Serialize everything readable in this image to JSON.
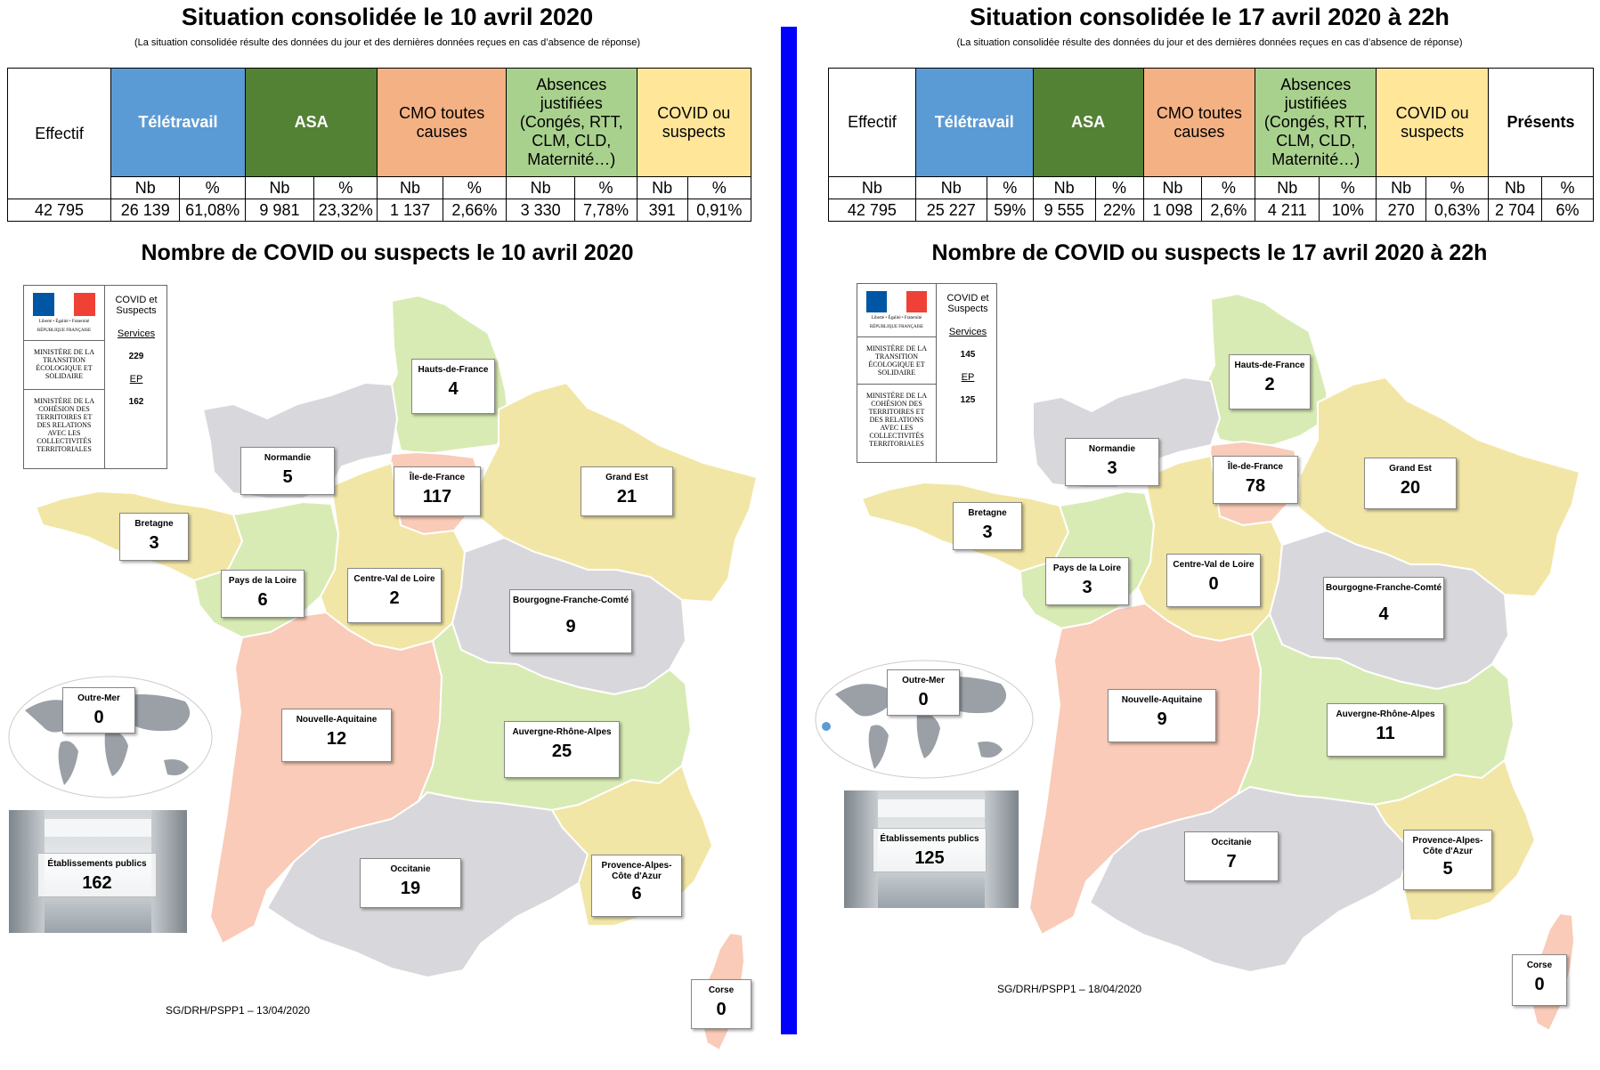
{
  "left": {
    "title": "Situation consolidée le 10 avril 2020",
    "subtitle": "(La situation consolidée résulte des données du jour et des dernières données reçues en cas d’absence de réponse)",
    "headers": {
      "effectif": "Effectif",
      "teletravail": "Télétravail",
      "asa": "ASA",
      "cmo": "CMO toutes causes",
      "absences": "Absences justifiées (Congés, RTT, CLM, CLD, Maternité…)",
      "covid": "COVID ou suspects"
    },
    "sub": {
      "nb": "Nb",
      "pct": "%"
    },
    "values": {
      "effectif": "42 795",
      "tele_nb": "26 139",
      "tele_pct": "61,08%",
      "asa_nb": "9 981",
      "asa_pct": "23,32%",
      "cmo_nb": "1 137",
      "cmo_pct": "2,66%",
      "abs_nb": "3 330",
      "abs_pct": "7,78%",
      "covid_nb": "391",
      "covid_pct": "0,91%"
    },
    "map_title": "Nombre de COVID ou suspects le 10 avril 2020",
    "legend": {
      "ministry1": "MINISTÈRE DE LA TRANSITION ÉCOLOGIQUE ET SOLIDAIRE",
      "ministry2": "MINISTÈRE DE LA COHÉSION DES TERRITOIRES ET DES RELATIONS AVEC LES COLLECTIVITÉS TERRITORIALES",
      "rf": "RÉPUBLIQUE FRANÇAISE",
      "motto": "Liberté • Égalité • Fraternité",
      "covid_label": "COVID et Suspects",
      "services_label": "Services",
      "services_value": "229",
      "ep_label": "EP",
      "ep_value": "162"
    },
    "regions": {
      "hdf": {
        "name": "Hauts-de-France",
        "value": "4"
      },
      "normandie": {
        "name": "Normandie",
        "value": "5"
      },
      "idf": {
        "name": "Île-de-France",
        "value": "117"
      },
      "grandest": {
        "name": "Grand Est",
        "value": "21"
      },
      "bretagne": {
        "name": "Bretagne",
        "value": "3"
      },
      "pdl": {
        "name": "Pays de la Loire",
        "value": "6"
      },
      "cvl": {
        "name": "Centre-Val de Loire",
        "value": "2"
      },
      "bfc": {
        "name": "Bourgogne-Franche-Comté",
        "value": "9"
      },
      "outremer": {
        "name": "Outre-Mer",
        "value": "0"
      },
      "na": {
        "name": "Nouvelle-Aquitaine",
        "value": "12"
      },
      "ara": {
        "name": "Auvergne-Rhône-Alpes",
        "value": "25"
      },
      "etab": {
        "name": "Établissements publics",
        "value": "162"
      },
      "occitanie": {
        "name": "Occitanie",
        "value": "19"
      },
      "paca": {
        "name": "Provence-Alpes-Côte d'Azur",
        "value": "6"
      },
      "corse": {
        "name": "Corse",
        "value": "0"
      }
    },
    "footer": "SG/DRH/PSPP1 – 13/04/2020"
  },
  "right": {
    "title": "Situation consolidée le 17 avril 2020 à 22h",
    "subtitle": "(La situation consolidée résulte des données du jour et des dernières données reçues en cas d’absence de réponse)",
    "headers": {
      "effectif": "Effectif",
      "teletravail": "Télétravail",
      "asa": "ASA",
      "cmo": "CMO toutes causes",
      "absences": "Absences justifiées (Congés, RTT, CLM, CLD, Maternité…)",
      "covid": "COVID ou suspects",
      "presents": "Présents"
    },
    "sub": {
      "nb": "Nb",
      "pct": "%"
    },
    "values": {
      "effectif": "42 795",
      "tele_nb": "25 227",
      "tele_pct": "59%",
      "asa_nb": "9 555",
      "asa_pct": "22%",
      "cmo_nb": "1 098",
      "cmo_pct": "2,6%",
      "abs_nb": "4 211",
      "abs_pct": "10%",
      "covid_nb": "270",
      "covid_pct": "0,63%",
      "pres_nb": "2 704",
      "pres_pct": "6%"
    },
    "map_title": "Nombre de COVID ou suspects le 17 avril 2020 à 22h",
    "legend": {
      "ministry1": "MINISTÈRE DE LA TRANSITION ÉCOLOGIQUE ET SOLIDAIRE",
      "ministry2": "MINISTÈRE DE LA COHÉSION DES TERRITOIRES ET DES RELATIONS AVEC LES COLLECTIVITÉS TERRITORIALES",
      "rf": "RÉPUBLIQUE FRANÇAISE",
      "motto": "Liberté • Égalité • Fraternité",
      "covid_label": "COVID et Suspects",
      "services_label": "Services",
      "services_value": "145",
      "ep_label": "EP",
      "ep_value": "125"
    },
    "regions": {
      "hdf": {
        "name": "Hauts-de-France",
        "value": "2"
      },
      "normandie": {
        "name": "Normandie",
        "value": "3"
      },
      "idf": {
        "name": "Île-de-France",
        "value": "78"
      },
      "grandest": {
        "name": "Grand Est",
        "value": "20"
      },
      "bretagne": {
        "name": "Bretagne",
        "value": "3"
      },
      "pdl": {
        "name": "Pays de la Loire",
        "value": "3"
      },
      "cvl": {
        "name": "Centre-Val de Loire",
        "value": "0"
      },
      "bfc": {
        "name": "Bourgogne-Franche-Comté",
        "value": "4"
      },
      "outremer": {
        "name": "Outre-Mer",
        "value": "0"
      },
      "na": {
        "name": "Nouvelle-Aquitaine",
        "value": "9"
      },
      "ara": {
        "name": "Auvergne-Rhône-Alpes",
        "value": "11"
      },
      "etab": {
        "name": "Établissements publics",
        "value": "125"
      },
      "occitanie": {
        "name": "Occitanie",
        "value": "7"
      },
      "paca": {
        "name": "Provence-Alpes-Côte d'Azur",
        "value": "5"
      },
      "corse": {
        "name": "Corse",
        "value": "0"
      }
    },
    "footer": "SG/DRH/PSPP1 – 18/04/2020"
  },
  "colors": {
    "green_region": "#d9ebb4",
    "yellow_region": "#f2e6a6",
    "grey_region": "#d8d8dc",
    "pink_region": "#f9cbb8",
    "divider": "#0000ff"
  }
}
